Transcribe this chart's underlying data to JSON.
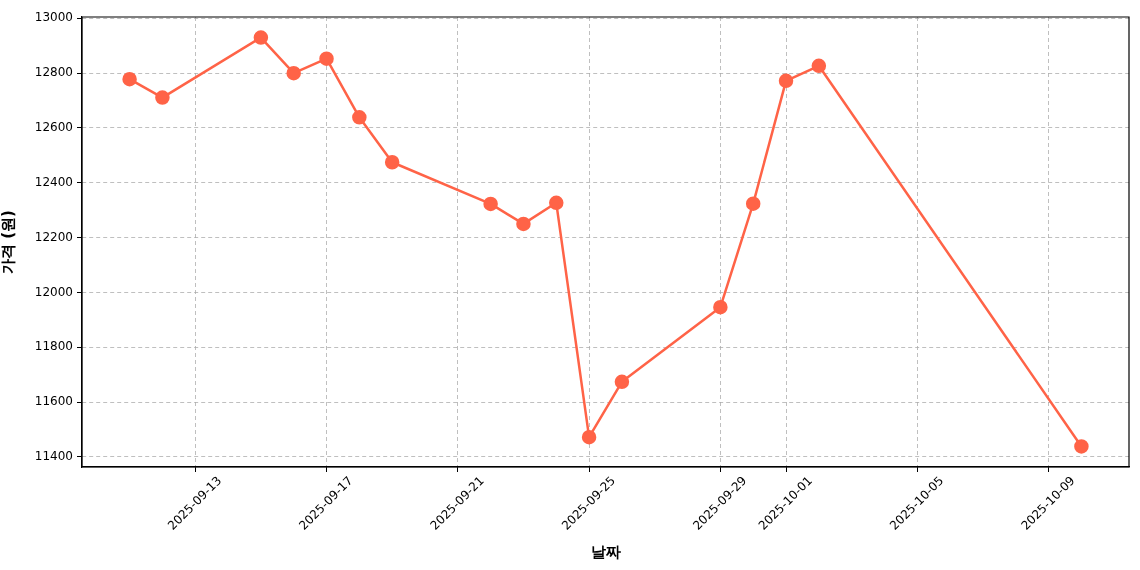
{
  "chart_data": {
    "type": "line",
    "xlabel": "날짜",
    "ylabel": "가격 (원)",
    "x": [
      "2025-09-11",
      "2025-09-12",
      "2025-09-15",
      "2025-09-16",
      "2025-09-17",
      "2025-09-18",
      "2025-09-19",
      "2025-09-22",
      "2025-09-23",
      "2025-09-24",
      "2025-09-25",
      "2025-09-26",
      "2025-09-29",
      "2025-09-30",
      "2025-10-01",
      "2025-10-02",
      "2025-10-10"
    ],
    "series": [
      {
        "color": "#ff6347",
        "values": [
          12778,
          12711,
          12930,
          12800,
          12853,
          12639,
          12475,
          12323,
          12250,
          12327,
          11472,
          11674,
          11946,
          12324,
          12772,
          12827,
          11438
        ]
      }
    ],
    "xlim": [
      "2025-09-09T13:12",
      "2025-10-11T10:48"
    ],
    "ylim": [
      11363,
      13005
    ],
    "xticks": [
      "2025-09-13",
      "2025-09-17",
      "2025-09-21",
      "2025-09-25",
      "2025-09-29",
      "2025-10-01",
      "2025-10-05",
      "2025-10-09"
    ],
    "yticks": [
      11400,
      11600,
      11800,
      12000,
      12200,
      12400,
      12600,
      12800,
      13000
    ],
    "grid": true,
    "marker": "circle",
    "line_style": "solid"
  }
}
